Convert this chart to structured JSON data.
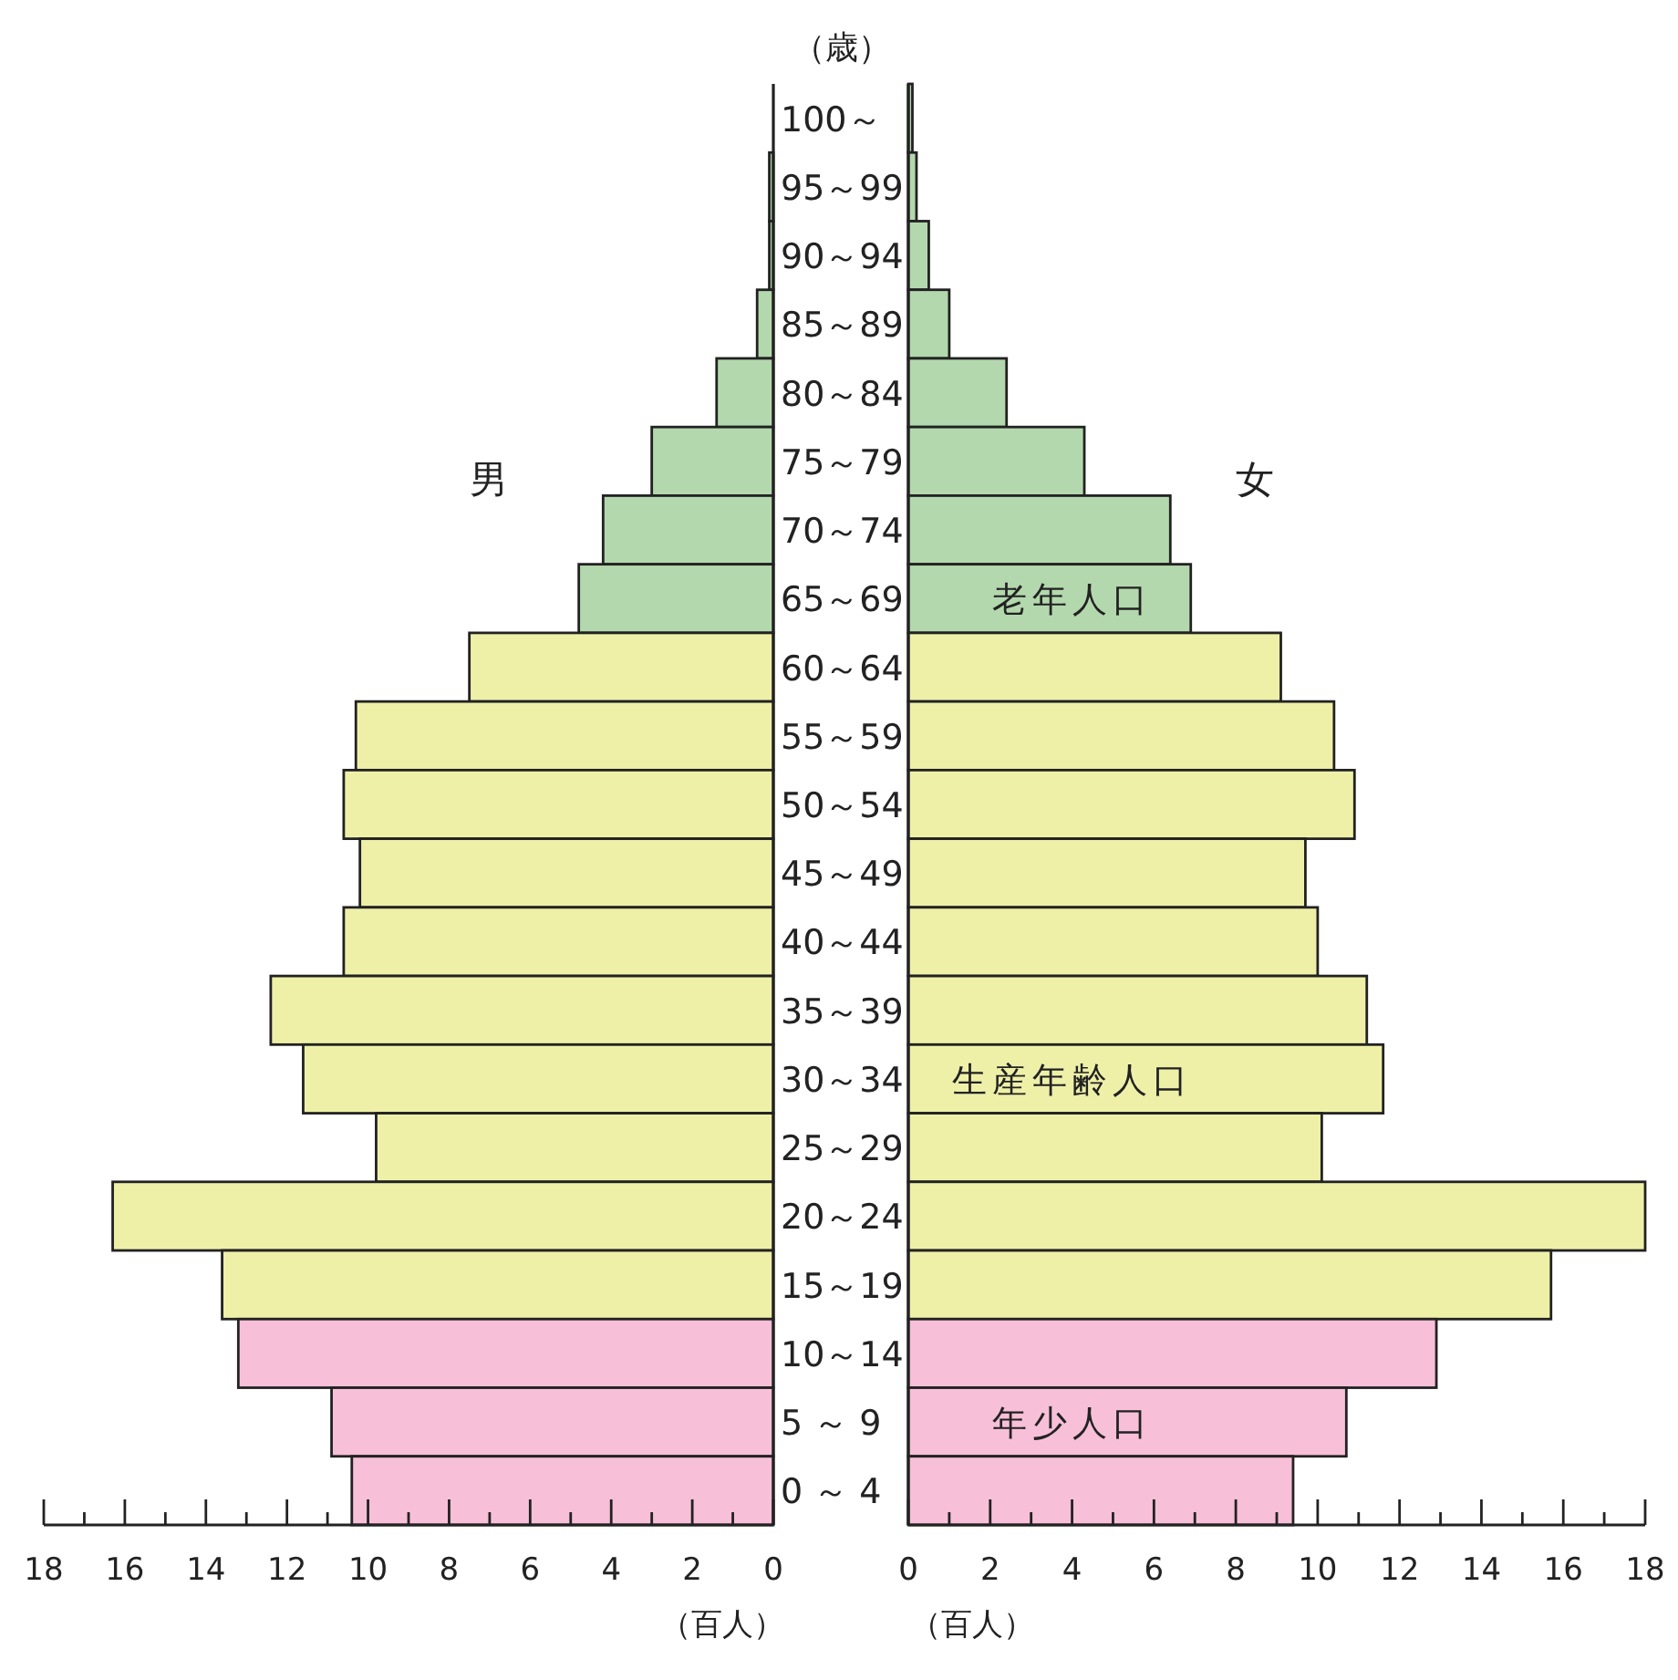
{
  "chart_data": [
    {
      "type": "bar",
      "orientation": "horizontal",
      "title": "男",
      "ylabel": "（歳）",
      "xlabel": "（百人）",
      "categories": [
        "100～",
        "95～99",
        "90～94",
        "85～89",
        "80～84",
        "75～79",
        "70～74",
        "65～69",
        "60～64",
        "55～59",
        "50～54",
        "45～49",
        "40～44",
        "35～39",
        "30～34",
        "25～29",
        "20～24",
        "15～19",
        "10～14",
        "5 ～ 9",
        "0 ～ 4"
      ],
      "values": [
        0,
        0.1,
        0.1,
        0.4,
        1.4,
        3.0,
        4.2,
        4.8,
        7.5,
        10.3,
        10.6,
        10.2,
        10.6,
        12.4,
        11.6,
        9.8,
        16.3,
        13.6,
        13.2,
        10.9,
        10.4
      ],
      "colors": [
        "#b3d8ad",
        "#b3d8ad",
        "#b3d8ad",
        "#b3d8ad",
        "#b3d8ad",
        "#b3d8ad",
        "#b3d8ad",
        "#b3d8ad",
        "#eef0a8",
        "#eef0a8",
        "#eef0a8",
        "#eef0a8",
        "#eef0a8",
        "#eef0a8",
        "#eef0a8",
        "#eef0a8",
        "#eef0a8",
        "#eef0a8",
        "#f8bfd8",
        "#f8bfd8",
        "#f8bfd8"
      ],
      "xlim": [
        18,
        0
      ],
      "xticks": [
        18,
        {
          "value": 17,
          "label": null
        },
        16,
        {
          "value": 15,
          "label": null
        },
        14,
        {
          "value": 13,
          "label": null
        },
        12,
        {
          "value": 11,
          "label": null
        },
        10,
        {
          "value": 9,
          "label": null
        },
        8,
        {
          "value": 7,
          "label": null
        },
        6,
        {
          "value": 5,
          "label": null
        },
        4,
        {
          "value": 3,
          "label": null
        },
        2,
        {
          "value": 1,
          "label": null
        },
        0
      ]
    },
    {
      "type": "bar",
      "orientation": "horizontal",
      "title": "女",
      "xlabel": "（百人）",
      "tick_labels": "x",
      "categories": [
        null,
        null,
        null,
        null,
        null,
        null,
        null,
        null,
        null,
        null,
        null,
        null,
        null,
        null,
        null,
        null,
        null,
        null,
        null,
        null,
        null
      ],
      "values": [
        0.1,
        0.2,
        0.5,
        1.0,
        2.4,
        4.3,
        6.4,
        6.9,
        9.1,
        10.4,
        10.9,
        9.7,
        10.0,
        11.2,
        11.6,
        10.1,
        18.0,
        15.7,
        12.9,
        10.7,
        9.4
      ],
      "colors": [
        "#b3d8ad",
        "#b3d8ad",
        "#b3d8ad",
        "#b3d8ad",
        "#b3d8ad",
        "#b3d8ad",
        "#b3d8ad",
        "#b3d8ad",
        "#eef0a8",
        "#eef0a8",
        "#eef0a8",
        "#eef0a8",
        "#eef0a8",
        "#eef0a8",
        "#eef0a8",
        "#eef0a8",
        "#eef0a8",
        "#eef0a8",
        "#f8bfd8",
        "#f8bfd8",
        "#f8bfd8"
      ],
      "xlim": [
        0,
        18
      ],
      "xticks": [
        0,
        {
          "value": 1,
          "label": null
        },
        2,
        {
          "value": 3,
          "label": null
        },
        4,
        {
          "value": 5,
          "label": null
        },
        6,
        {
          "value": 7,
          "label": null
        },
        8,
        {
          "value": 9,
          "label": null
        },
        10,
        {
          "value": 11,
          "label": null
        },
        12,
        {
          "value": 13,
          "label": null
        },
        14,
        {
          "value": 15,
          "label": null
        },
        16,
        {
          "value": 17,
          "label": null
        },
        18
      ],
      "annotations": [
        "老年人口",
        "生産年齢人口",
        "年少人口"
      ]
    }
  ]
}
